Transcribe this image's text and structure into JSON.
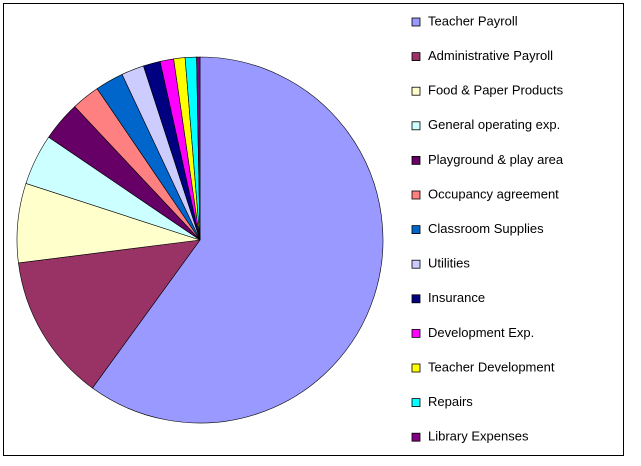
{
  "chart_data": {
    "type": "pie",
    "categories": [
      "Teacher Payroll",
      "Administrative Payroll",
      "Food & Paper Products",
      "General operating exp.",
      "Playground & play area",
      "Occupancy agreement",
      "Classroom Supplies",
      "Utilities",
      "Insurance",
      "Development Exp.",
      "Teacher Development",
      "Repairs",
      "Library Expenses"
    ],
    "values": [
      60,
      13,
      7,
      4.5,
      3.5,
      2.5,
      2.5,
      2,
      1.5,
      1.2,
      1,
      1,
      0.3
    ],
    "colors": [
      "#9999ff",
      "#993366",
      "#ffffcc",
      "#ccffff",
      "#660066",
      "#ff8080",
      "#0066cc",
      "#ccccff",
      "#000080",
      "#ff00ff",
      "#ffff00",
      "#00ffff",
      "#800080"
    ],
    "legend": "right"
  }
}
